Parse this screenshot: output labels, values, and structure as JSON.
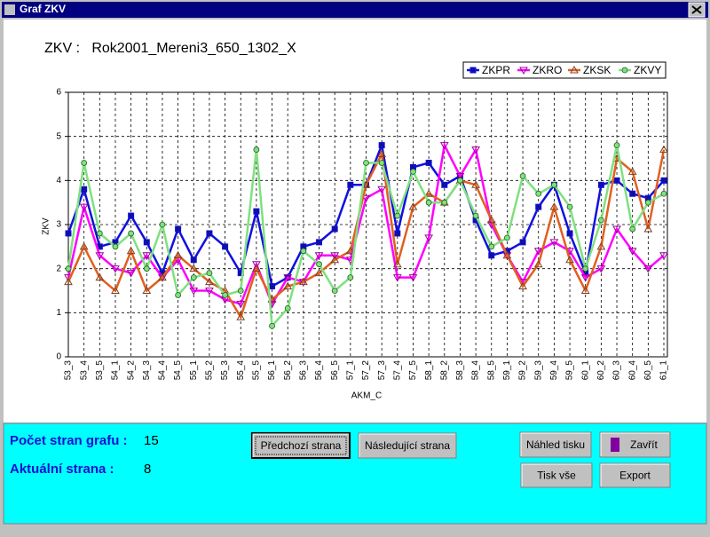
{
  "window": {
    "title": "Graf ZKV"
  },
  "chart_data": {
    "type": "line",
    "title": "ZKV :   Rok2001_Mereni3_650_1302_X",
    "x_label": "AKM_C",
    "y_label": "ZKV",
    "categories": [
      "53_3",
      "53_4",
      "53_5",
      "54_1",
      "54_2",
      "54_3",
      "54_4",
      "54_5",
      "55_1",
      "55_2",
      "55_3",
      "55_4",
      "55_5",
      "56_1",
      "56_2",
      "56_3",
      "56_4",
      "56_5",
      "57_1",
      "57_2",
      "57_3",
      "57_4",
      "57_5",
      "58_1",
      "58_2",
      "58_3",
      "58_4",
      "58_5",
      "59_1",
      "59_2",
      "59_3",
      "59_4",
      "59_5",
      "60_1",
      "60_2",
      "60_3",
      "60_4",
      "60_5",
      "61_1"
    ],
    "series": [
      {
        "name": "ZKPR",
        "color": "#1010e0",
        "marker": "square",
        "values": [
          2.8,
          3.8,
          2.5,
          2.6,
          3.2,
          2.6,
          1.9,
          2.9,
          2.2,
          2.8,
          2.5,
          1.9,
          3.3,
          1.6,
          1.8,
          2.5,
          2.6,
          2.9,
          3.9,
          3.9,
          4.8,
          2.8,
          4.3,
          4.4,
          3.9,
          4.1,
          3.1,
          2.3,
          2.4,
          2.6,
          3.4,
          3.9,
          2.8,
          1.9,
          3.9,
          4.0,
          3.7,
          3.6,
          4.0
        ]
      },
      {
        "name": "ZKRO",
        "color": "#ff00ff",
        "marker": "triangle-down",
        "values": [
          1.8,
          3.4,
          2.3,
          2.0,
          1.9,
          2.3,
          1.8,
          2.2,
          1.5,
          1.5,
          1.3,
          1.2,
          2.1,
          1.2,
          1.8,
          1.7,
          2.3,
          2.3,
          2.2,
          3.6,
          3.8,
          1.8,
          1.8,
          2.7,
          4.8,
          4.1,
          4.7,
          3.0,
          2.3,
          1.7,
          2.4,
          2.6,
          2.4,
          1.8,
          2.0,
          2.9,
          2.4,
          2.0,
          2.3
        ]
      },
      {
        "name": "ZKSK",
        "color": "#e06020",
        "marker": "triangle-up",
        "values": [
          1.7,
          2.5,
          1.8,
          1.5,
          2.4,
          1.5,
          1.8,
          2.3,
          2.0,
          1.7,
          1.5,
          0.9,
          2.0,
          1.3,
          1.6,
          1.7,
          1.9,
          2.2,
          2.4,
          3.9,
          4.6,
          2.1,
          3.4,
          3.7,
          3.5,
          4.0,
          3.9,
          3.1,
          2.3,
          1.6,
          2.1,
          3.4,
          2.2,
          1.5,
          2.5,
          4.5,
          4.2,
          2.9,
          4.7
        ]
      },
      {
        "name": "ZKVY",
        "color": "#80e080",
        "marker": "circle",
        "values": [
          2.0,
          4.4,
          2.8,
          2.5,
          2.8,
          2.0,
          3.0,
          1.4,
          1.8,
          1.9,
          1.4,
          1.5,
          4.7,
          0.7,
          1.1,
          2.4,
          2.1,
          1.5,
          1.8,
          4.4,
          4.4,
          3.2,
          4.2,
          3.5,
          3.5,
          4.0,
          3.2,
          2.5,
          2.7,
          4.1,
          3.7,
          3.9,
          3.4,
          2.0,
          3.1,
          4.8,
          2.9,
          3.5,
          3.7
        ]
      }
    ],
    "ylim": [
      0,
      6
    ],
    "yticks": [
      0,
      1,
      2,
      3,
      4,
      5,
      6
    ],
    "grid": true,
    "legend": "top-right"
  },
  "panel": {
    "page_count_label": "Počet stran grafu :",
    "page_count": 15,
    "current_page_label": "Aktuální strana :",
    "current_page": 8
  },
  "buttons": [
    "Předchozí strana",
    "Následující strana",
    "Náhled tisku",
    "Zavřít",
    "Tisk vše",
    "Export"
  ]
}
